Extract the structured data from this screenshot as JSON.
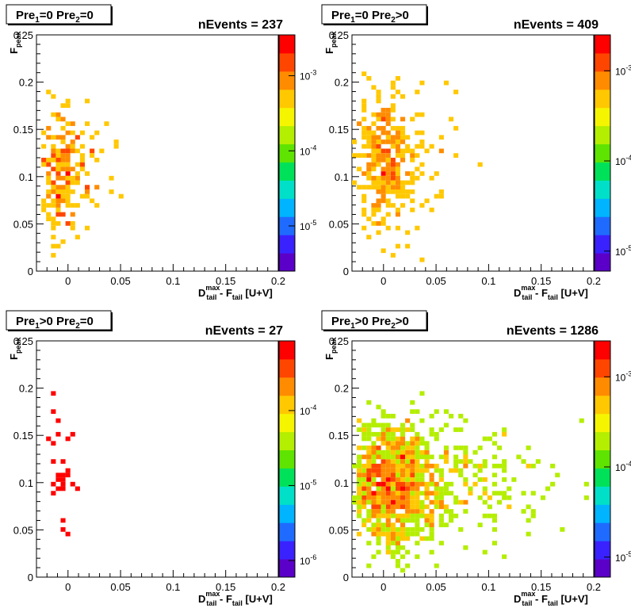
{
  "colors": {
    "palette": [
      "#5b00c8",
      "#3a22ff",
      "#1f6bff",
      "#00b4ff",
      "#00e0c8",
      "#00e15a",
      "#5ee400",
      "#b4ee00",
      "#f5f500",
      "#ffc800",
      "#ff8c00",
      "#ff4600",
      "#ff0000"
    ]
  },
  "x_ticks": [
    "0",
    "0.05",
    "0.1",
    "0.15",
    "0.2"
  ],
  "y_ticks": [
    "0",
    "0.05",
    "0.1",
    "0.15",
    "0.2",
    "0.25"
  ],
  "chart_data": [
    {
      "type": "heatmap",
      "title": "Pre1=0 Pre2=0",
      "stats": "nEvents = 237",
      "xlabel": "D_tail^max - F_tail [U+V]",
      "ylabel": "F_peak",
      "xlim": [
        -0.03,
        0.2
      ],
      "ylim": [
        0,
        0.25
      ],
      "colorbar": {
        "scale": "log",
        "ticks": [
          {
            "base": "10",
            "exp": "-3",
            "value": 0.001
          },
          {
            "base": "10",
            "exp": "-4",
            "value": 0.0001
          },
          {
            "base": "10",
            "exp": "-5",
            "value": 1e-05
          }
        ],
        "range": [
          2.5e-06,
          0.0035
        ]
      },
      "cluster": {
        "cx": -0.008,
        "cy": 0.105,
        "sx": 0.01,
        "sy": 0.04,
        "n": 220,
        "seed": 11,
        "tail": 0.02
      }
    },
    {
      "type": "heatmap",
      "title": "Pre1=0 Pre2>0",
      "stats": "nEvents = 409",
      "xlabel": "D_tail^max - F_tail [U+V]",
      "ylabel": "F_peak",
      "xlim": [
        -0.03,
        0.2
      ],
      "ylim": [
        0,
        0.25
      ],
      "colorbar": {
        "scale": "log",
        "ticks": [
          {
            "base": "10",
            "exp": "-3",
            "value": 0.001
          },
          {
            "base": "10",
            "exp": "-4",
            "value": 0.0001
          },
          {
            "base": "10",
            "exp": "-5",
            "value": 1e-05
          }
        ],
        "range": [
          6e-06,
          0.0025
        ]
      },
      "cluster": {
        "cx": -0.002,
        "cy": 0.115,
        "sx": 0.012,
        "sy": 0.045,
        "n": 340,
        "seed": 23,
        "tail": 0.03
      }
    },
    {
      "type": "heatmap",
      "title": "Pre1>0 Pre2=0",
      "stats": "nEvents = 27",
      "xlabel": "D_tail^max - F_tail [U+V]",
      "ylabel": "F_peak",
      "xlim": [
        -0.03,
        0.2
      ],
      "ylim": [
        0,
        0.25
      ],
      "colorbar": {
        "scale": "log",
        "ticks": [
          {
            "base": "10",
            "exp": "-4",
            "value": 0.0001
          },
          {
            "base": "10",
            "exp": "-5",
            "value": 1e-05
          },
          {
            "base": "10",
            "exp": "-6",
            "value": 1e-06
          }
        ],
        "range": [
          6e-07,
          0.00085
        ]
      },
      "points": [
        [
          -0.012,
          0.195
        ],
        [
          -0.012,
          0.177
        ],
        [
          -0.01,
          0.165
        ],
        [
          -0.02,
          0.145
        ],
        [
          -0.01,
          0.15
        ],
        [
          0.004,
          0.152
        ],
        [
          -0.012,
          0.12
        ],
        [
          -0.003,
          0.12
        ],
        [
          -0.01,
          0.11
        ],
        [
          -0.005,
          0.11
        ],
        [
          -0.007,
          0.105
        ],
        [
          -0.012,
          0.1
        ],
        [
          -0.002,
          0.108
        ],
        [
          0.003,
          0.1
        ],
        [
          -0.009,
          0.095
        ],
        [
          -0.012,
          0.09
        ],
        [
          -0.005,
          0.092
        ],
        [
          0.01,
          0.092
        ],
        [
          -0.003,
          0.062
        ],
        [
          -0.006,
          0.048
        ],
        [
          0.001,
          0.046
        ],
        [
          -0.015,
          0.143
        ],
        [
          -0.001,
          0.145
        ],
        [
          -0.008,
          0.101
        ],
        [
          -0.004,
          0.097
        ],
        [
          -0.011,
          0.107
        ],
        [
          0.002,
          0.112
        ]
      ]
    },
    {
      "type": "heatmap",
      "title": "Pre1>0 Pre2>0",
      "stats": "nEvents = 1286",
      "xlabel": "D_tail^max - F_tail [U+V]",
      "ylabel": "F_peak",
      "xlim": [
        -0.03,
        0.2
      ],
      "ylim": [
        0,
        0.25
      ],
      "colorbar": {
        "scale": "log",
        "ticks": [
          {
            "base": "10",
            "exp": "-3",
            "value": 0.001
          },
          {
            "base": "10",
            "exp": "-4",
            "value": 0.0001
          },
          {
            "base": "10",
            "exp": "-5",
            "value": 1e-05
          }
        ],
        "range": [
          6e-06,
          0.0025
        ]
      },
      "cluster": {
        "cx": 0.003,
        "cy": 0.1,
        "sx": 0.018,
        "sy": 0.042,
        "n": 1100,
        "seed": 47,
        "tail": 0.06
      }
    }
  ]
}
